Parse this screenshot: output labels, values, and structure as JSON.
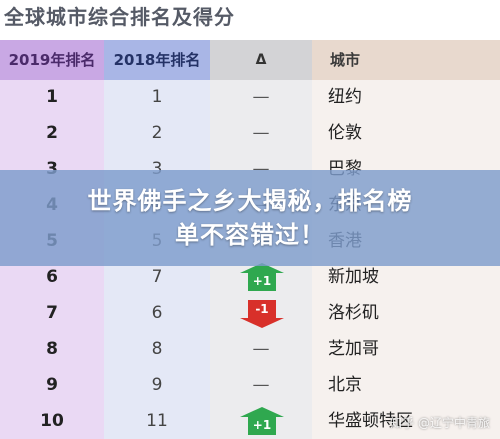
{
  "heading": "全球城市综合排名及得分",
  "table": {
    "headers": [
      "2019年排名",
      "2018年排名",
      "Δ",
      "城市"
    ],
    "rows": [
      {
        "rank2019": "1",
        "rank2018": "1",
        "change": "—",
        "city": "纽约"
      },
      {
        "rank2019": "2",
        "rank2018": "2",
        "change": "—",
        "city": "伦敦"
      },
      {
        "rank2019": "3",
        "rank2018": "3",
        "change": "—",
        "city": "巴黎"
      },
      {
        "rank2019": "4",
        "rank2018": "4",
        "change": "—",
        "city": "东京"
      },
      {
        "rank2019": "5",
        "rank2018": "5",
        "change": "—",
        "city": "香港"
      },
      {
        "rank2019": "6",
        "rank2018": "7",
        "change": "+1",
        "city": "新加坡"
      },
      {
        "rank2019": "7",
        "rank2018": "6",
        "change": "-1",
        "city": "洛杉矶"
      },
      {
        "rank2019": "8",
        "rank2018": "8",
        "change": "—",
        "city": "芝加哥"
      },
      {
        "rank2019": "9",
        "rank2018": "9",
        "change": "—",
        "city": "北京"
      },
      {
        "rank2019": "10",
        "rank2018": "11",
        "change": "+1",
        "city": "华盛顿特区"
      }
    ]
  },
  "banner": {
    "line1": "世界佛手之乡大揭秘，排名榜",
    "line2": "单不容错过！"
  },
  "watermark": "知乎 @辽宁中青旅",
  "colors": {
    "col2019": "#ead9f4",
    "col2018": "#e4e8f6",
    "up": "#2fa84f",
    "down": "#d8302a"
  }
}
